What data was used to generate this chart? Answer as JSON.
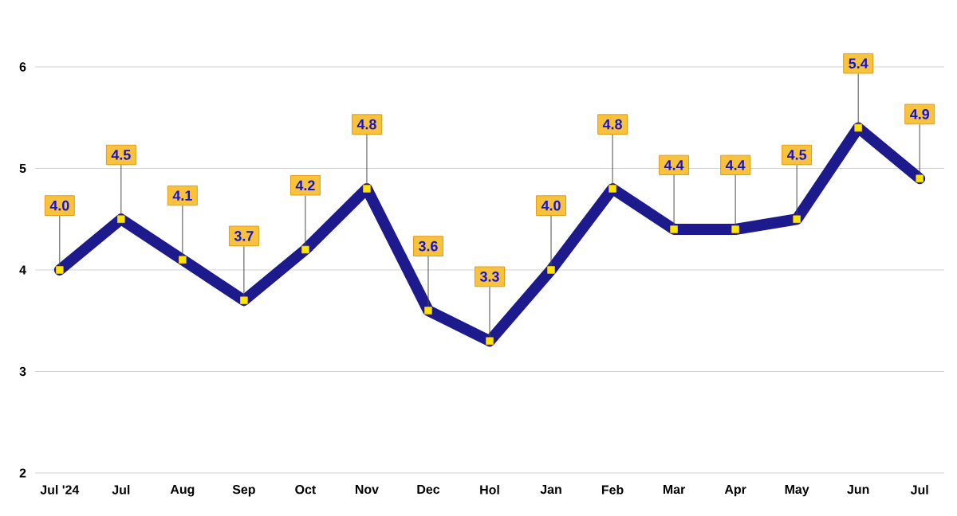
{
  "chart_data": {
    "type": "line",
    "categories": [
      "Jul '24",
      "Jul",
      "Aug",
      "Sep",
      "Oct",
      "Nov",
      "Dec",
      "Hol",
      "Jan",
      "Feb",
      "Mar",
      "Apr",
      "May",
      "Jun",
      "Jul"
    ],
    "values": [
      4.0,
      4.5,
      4.1,
      3.7,
      4.2,
      4.8,
      3.6,
      3.3,
      4.0,
      4.8,
      4.4,
      4.4,
      4.5,
      5.4,
      4.9
    ],
    "value_labels": [
      "4.0",
      "4.5",
      "4.1",
      "3.7",
      "4.2",
      "4.8",
      "3.6",
      "3.3",
      "4.0",
      "4.8",
      "4.4",
      "4.4",
      "4.5",
      "5.4",
      "4.9"
    ],
    "color": "#1c1a8c",
    "marker": "square",
    "grid": "y",
    "ylim": [
      2,
      6
    ],
    "yticks": [
      2,
      3,
      4,
      5,
      6
    ]
  }
}
